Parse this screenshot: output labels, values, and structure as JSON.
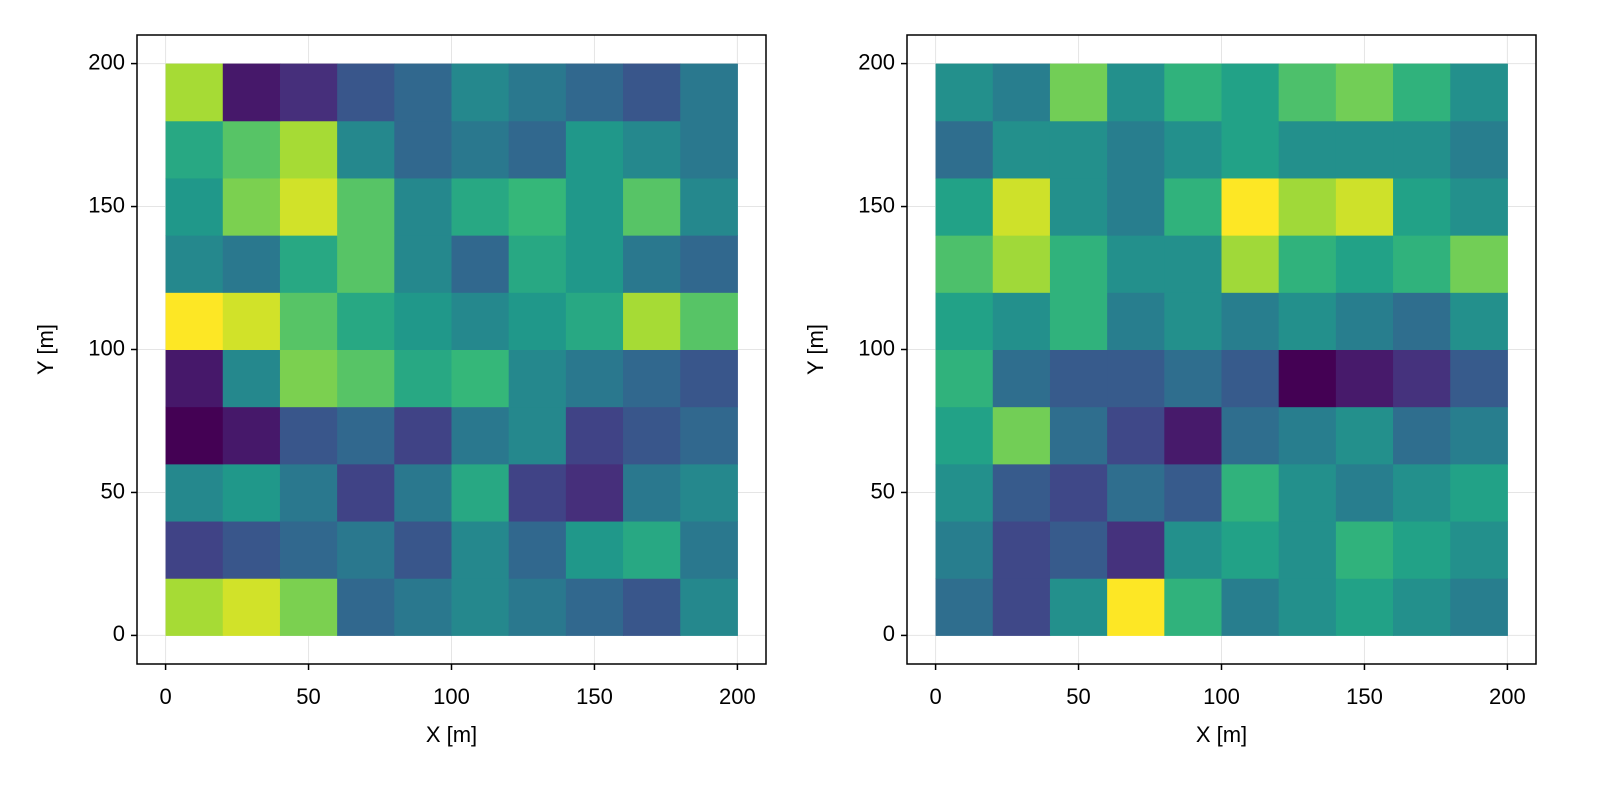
{
  "chart_data": [
    {
      "type": "heatmap",
      "xlabel": "X [m]",
      "ylabel": "Y [m]",
      "colormap": "viridis",
      "grid": true,
      "xlim": [
        -10,
        210
      ],
      "ylim": [
        -10,
        210
      ],
      "xticks": [
        0,
        50,
        100,
        150,
        200
      ],
      "yticks": [
        0,
        50,
        100,
        150,
        200
      ],
      "xbins": [
        0,
        20,
        40,
        60,
        80,
        100,
        120,
        140,
        160,
        180,
        200
      ],
      "ybins": [
        0,
        20,
        40,
        60,
        80,
        100,
        120,
        140,
        160,
        180,
        200
      ],
      "values": [
        [
          0.8,
          0.85,
          0.75,
          0.4,
          0.45,
          0.5,
          0.45,
          0.4,
          0.35,
          0.5
        ],
        [
          0.3,
          0.35,
          0.4,
          0.45,
          0.35,
          0.5,
          0.4,
          0.55,
          0.6,
          0.45
        ],
        [
          0.5,
          0.55,
          0.45,
          0.3,
          0.45,
          0.6,
          0.3,
          0.25,
          0.45,
          0.5
        ],
        [
          0.15,
          0.2,
          0.35,
          0.4,
          0.3,
          0.45,
          0.5,
          0.3,
          0.35,
          0.4
        ],
        [
          0.2,
          0.5,
          0.75,
          0.7,
          0.6,
          0.65,
          0.5,
          0.45,
          0.4,
          0.35
        ],
        [
          0.9,
          0.85,
          0.7,
          0.6,
          0.55,
          0.5,
          0.55,
          0.6,
          0.8,
          0.7
        ],
        [
          0.5,
          0.45,
          0.6,
          0.7,
          0.5,
          0.4,
          0.6,
          0.55,
          0.45,
          0.4
        ],
        [
          0.55,
          0.75,
          0.85,
          0.7,
          0.5,
          0.6,
          0.65,
          0.55,
          0.7,
          0.5
        ],
        [
          0.6,
          0.7,
          0.8,
          0.5,
          0.4,
          0.45,
          0.4,
          0.55,
          0.5,
          0.45
        ],
        [
          0.8,
          0.2,
          0.25,
          0.35,
          0.4,
          0.5,
          0.45,
          0.4,
          0.35,
          0.45
        ]
      ]
    },
    {
      "type": "heatmap",
      "xlabel": "X [m]",
      "ylabel": "Y [m]",
      "colormap": "viridis",
      "grid": true,
      "xlim": [
        -10,
        210
      ],
      "ylim": [
        -10,
        210
      ],
      "xticks": [
        0,
        50,
        100,
        150,
        200
      ],
      "yticks": [
        0,
        50,
        100,
        150,
        200
      ],
      "xbins": [
        0,
        20,
        40,
        60,
        80,
        100,
        120,
        140,
        160,
        180,
        200
      ],
      "ybins": [
        0,
        20,
        40,
        60,
        80,
        100,
        120,
        140,
        160,
        180,
        200
      ],
      "values": [
        [
          0.4,
          0.3,
          0.5,
          0.85,
          0.6,
          0.45,
          0.5,
          0.55,
          0.5,
          0.45
        ],
        [
          0.45,
          0.3,
          0.35,
          0.25,
          0.5,
          0.55,
          0.5,
          0.6,
          0.55,
          0.5
        ],
        [
          0.5,
          0.35,
          0.3,
          0.4,
          0.35,
          0.6,
          0.5,
          0.45,
          0.5,
          0.55
        ],
        [
          0.55,
          0.7,
          0.4,
          0.3,
          0.2,
          0.4,
          0.45,
          0.5,
          0.4,
          0.45
        ],
        [
          0.6,
          0.4,
          0.35,
          0.35,
          0.4,
          0.35,
          0.15,
          0.2,
          0.25,
          0.35
        ],
        [
          0.55,
          0.5,
          0.6,
          0.45,
          0.5,
          0.45,
          0.5,
          0.45,
          0.4,
          0.5
        ],
        [
          0.65,
          0.75,
          0.6,
          0.5,
          0.5,
          0.75,
          0.6,
          0.55,
          0.6,
          0.7
        ],
        [
          0.55,
          0.8,
          0.5,
          0.45,
          0.6,
          0.85,
          0.75,
          0.8,
          0.55,
          0.5
        ],
        [
          0.4,
          0.5,
          0.5,
          0.45,
          0.5,
          0.55,
          0.5,
          0.5,
          0.5,
          0.45
        ],
        [
          0.5,
          0.45,
          0.7,
          0.5,
          0.6,
          0.55,
          0.65,
          0.7,
          0.6,
          0.5
        ]
      ]
    }
  ]
}
